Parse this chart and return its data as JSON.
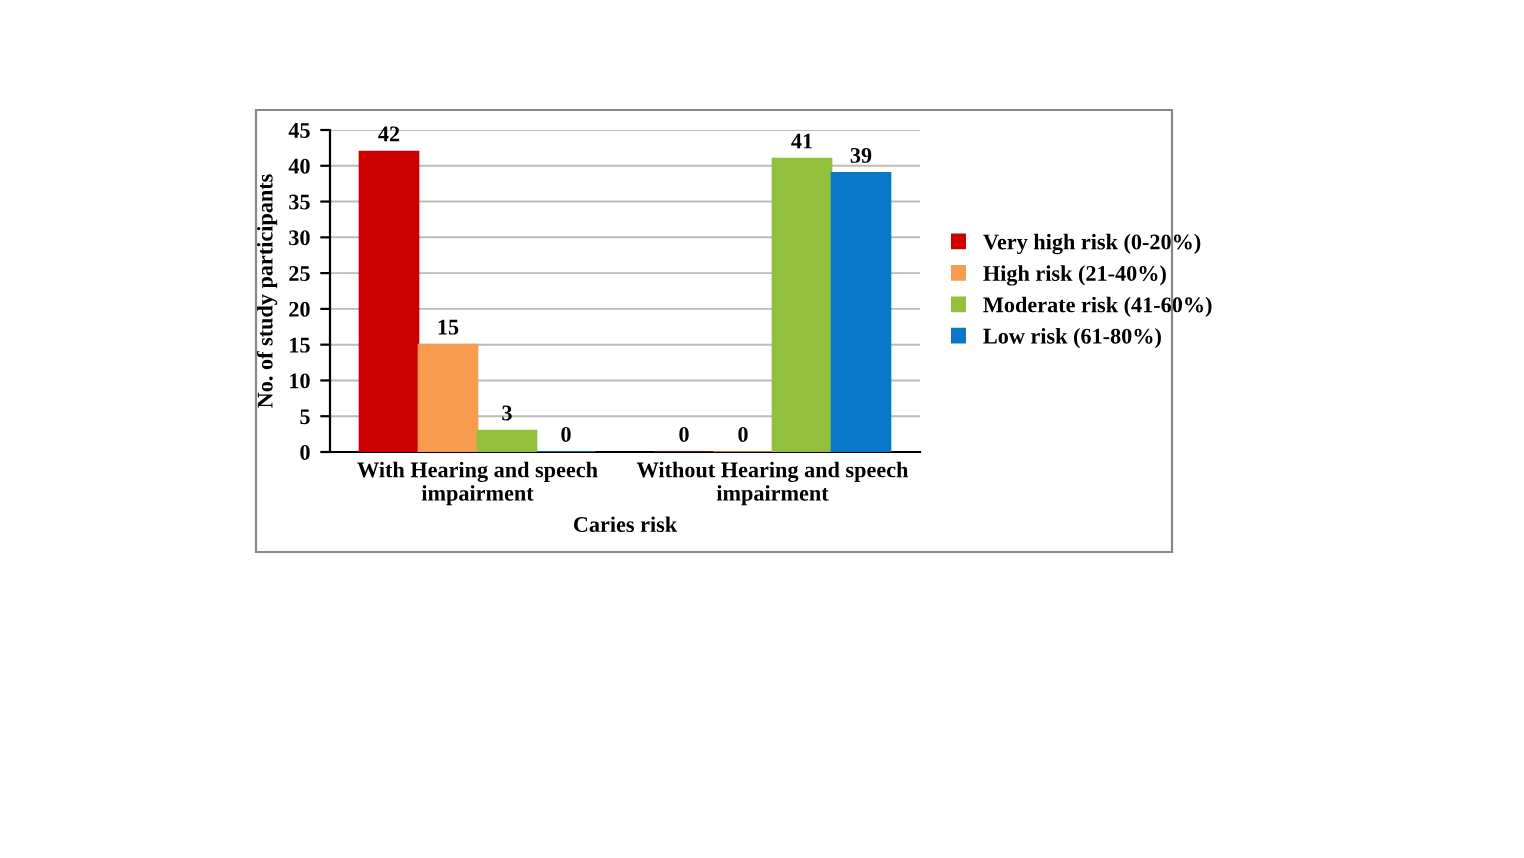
{
  "chart_data": {
    "type": "bar",
    "xlabel": "Caries risk",
    "ylabel": "No. of study participants",
    "categories": [
      "With Hearing and speech impairment",
      "Without Hearing and speech impairment"
    ],
    "series": [
      {
        "name": "Very high risk (0-20%)",
        "color": "#cc0000",
        "values": [
          42,
          0
        ]
      },
      {
        "name": "High risk (21-40%)",
        "color": "#f79c4e",
        "values": [
          15,
          0
        ]
      },
      {
        "name": "Moderate risk (41-60%)",
        "color": "#92c03c",
        "values": [
          3,
          41
        ]
      },
      {
        "name": "Low risk (61-80%)",
        "color": "#0a78c8",
        "values": [
          0,
          39
        ]
      }
    ],
    "ylim": [
      0,
      45
    ],
    "yticks": [
      0,
      5,
      10,
      15,
      20,
      25,
      30,
      35,
      40,
      45
    ],
    "grid": "y",
    "legend": "right",
    "data_labels": true
  }
}
